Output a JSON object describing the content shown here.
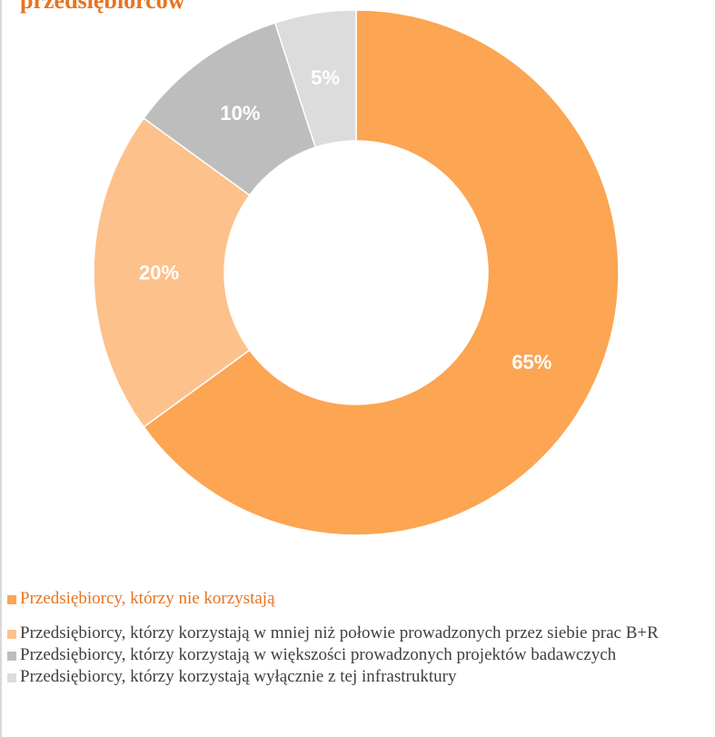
{
  "title": "przedsiębiorców",
  "chart_data": {
    "type": "pie",
    "variant": "donut",
    "categories": [
      "Przedsiębiorcy, którzy nie korzystają",
      "Przedsiębiorcy, którzy korzystają w mniej niż połowie prowadzonych przez siebie prac B+R",
      "Przedsiębiorcy, którzy korzystają w większości prowadzonych projektów badawczych",
      "Przedsiębiorcy, którzy korzystają wyłącznie z tej infrastruktury"
    ],
    "values": [
      65,
      20,
      10,
      5
    ],
    "data_labels": [
      "65%",
      "20%",
      "10%",
      "5%"
    ],
    "colors": [
      "#fca552",
      "#fdc18b",
      "#bdbdbd",
      "#dcdcdc"
    ],
    "legend_position": "bottom"
  }
}
